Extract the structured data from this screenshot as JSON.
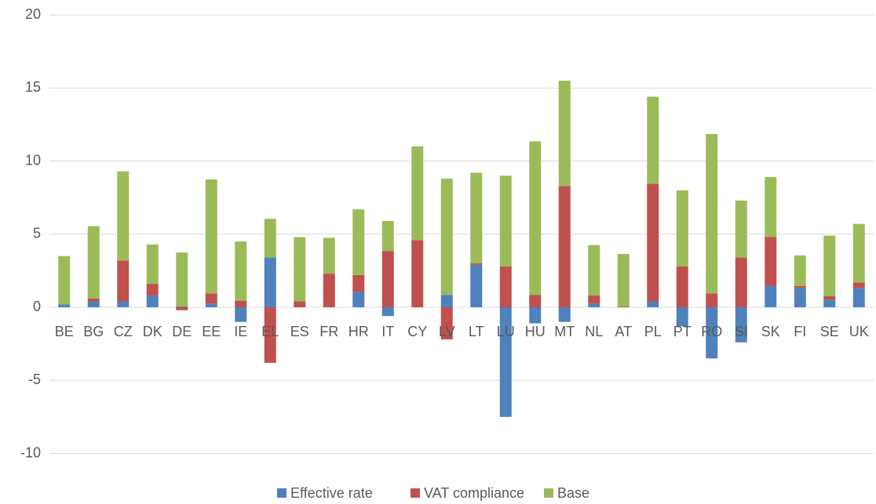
{
  "chart_data": {
    "type": "stacked_bar",
    "categories": [
      "BE",
      "BG",
      "CZ",
      "DK",
      "DE",
      "EE",
      "IE",
      "EL",
      "ES",
      "FR",
      "HR",
      "IT",
      "CY",
      "LV",
      "LT",
      "LU",
      "HU",
      "MT",
      "NL",
      "AT",
      "PL",
      "PT",
      "RO",
      "SI",
      "SK",
      "FI",
      "SE",
      "UK"
    ],
    "series": [
      {
        "name": "Effective rate",
        "color": "#4f81bd",
        "values": [
          0.2,
          0.4,
          0.4,
          0.8,
          0.05,
          0.25,
          -1.0,
          3.4,
          0,
          0,
          1.05,
          -0.6,
          0,
          0.85,
          2.9,
          -7.5,
          -1.1,
          -1.0,
          0.25,
          0,
          0.4,
          -1.3,
          -3.5,
          -2.4,
          1.45,
          1.3,
          0.5,
          1.3
        ]
      },
      {
        "name": "VAT compliance",
        "color": "#c0504d",
        "values": [
          0,
          0.2,
          2.8,
          0.8,
          -0.2,
          0.7,
          0.45,
          -3.8,
          0.4,
          2.3,
          1.15,
          3.85,
          4.6,
          -2.2,
          0.1,
          2.8,
          0.85,
          8.3,
          0.55,
          0.05,
          8.05,
          2.8,
          0.95,
          3.4,
          3.35,
          0.15,
          0.25,
          0.4
        ]
      },
      {
        "name": "Base",
        "color": "#9bbb59",
        "values": [
          3.3,
          4.95,
          6.1,
          2.7,
          3.7,
          7.8,
          4.05,
          2.65,
          4.4,
          2.45,
          4.5,
          2.05,
          6.4,
          7.95,
          6.2,
          6.2,
          10.5,
          7.2,
          3.45,
          3.6,
          5.95,
          5.2,
          10.9,
          3.9,
          4.1,
          2.1,
          4.15,
          4.0
        ]
      }
    ],
    "ylim": [
      -12,
      20
    ],
    "yticks": [
      -10,
      -5,
      0,
      5,
      10,
      15,
      20
    ],
    "grid": true,
    "legend": "bottom"
  }
}
